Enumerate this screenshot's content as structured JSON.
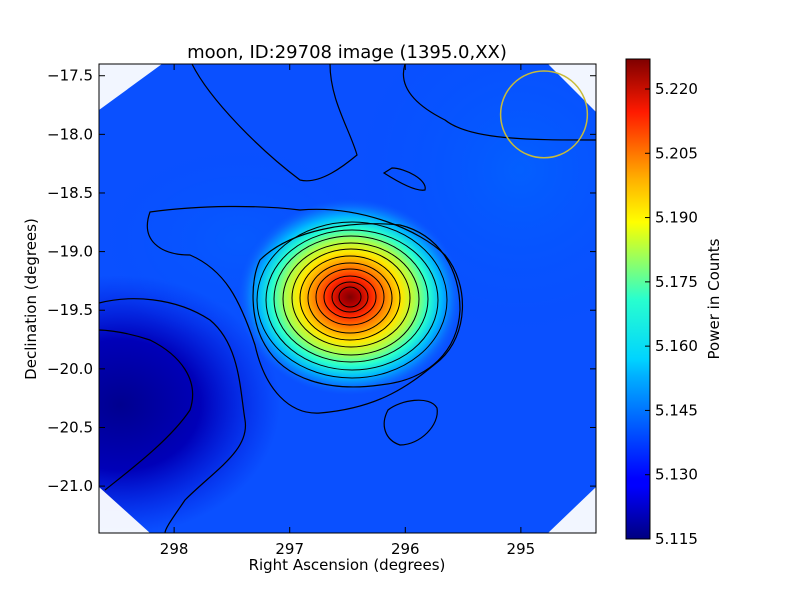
{
  "chart_data": {
    "type": "heatmap",
    "title": "moon, ID:29708 image (1395.0,XX)",
    "xlabel": "Right Ascension (degrees)",
    "ylabel": "Declination (degrees)",
    "colorbar_label": "Power in Counts",
    "colormap": "jet",
    "xlim": [
      298.65,
      294.35
    ],
    "ylim": [
      -21.4,
      -17.4
    ],
    "x_ticks": [
      298,
      297,
      296,
      295
    ],
    "x_tick_labels": [
      "298",
      "297",
      "296",
      "295"
    ],
    "y_ticks": [
      -17.5,
      -18.0,
      -18.5,
      -19.0,
      -19.5,
      -20.0,
      -20.5,
      -21.0
    ],
    "y_tick_labels": [
      "−17.5",
      "−18.0",
      "−18.5",
      "−19.0",
      "−19.5",
      "−20.0",
      "−20.5",
      "−21.0"
    ],
    "colorbar_range": [
      5.115,
      5.227
    ],
    "colorbar_ticks": [
      5.115,
      5.13,
      5.145,
      5.16,
      5.175,
      5.19,
      5.205,
      5.22
    ],
    "colorbar_tick_labels": [
      "5.115",
      "5.130",
      "5.145",
      "5.160",
      "5.175",
      "5.190",
      "5.205",
      "5.220"
    ],
    "peak": {
      "ra": 296.45,
      "dec": -19.38,
      "value": 5.227
    },
    "minimum_region": {
      "ra": 298.4,
      "dec": -20.3,
      "value": 5.116
    },
    "contour_lines": "black",
    "beam_circle": {
      "ra": 294.8,
      "dec": -17.83,
      "radius_deg": 0.37,
      "color": "#c8bb3a"
    }
  }
}
